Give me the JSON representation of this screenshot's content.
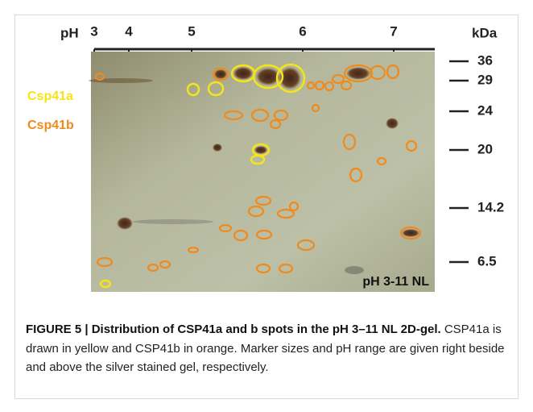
{
  "figure": {
    "ph_label": "pH",
    "ph_ticks": [
      "3",
      "4",
      "5",
      "6",
      "7"
    ],
    "kda_label": "kDa",
    "markers": [
      "36",
      "29",
      "24",
      "20",
      "14.2",
      "6.5"
    ],
    "legend": [
      "Csp41a",
      "Csp41b"
    ],
    "gel_label": "pH 3-11 NL",
    "caption": {
      "title": "FIGURE 5 | Distribution of CSP41a and b spots in the pH 3–11 NL 2D-gel.",
      "text": "CSP41a is drawn in yellow and CSP41b in orange. Marker sizes and pH range are given right beside and above the silver stained gel, respectively."
    }
  }
}
